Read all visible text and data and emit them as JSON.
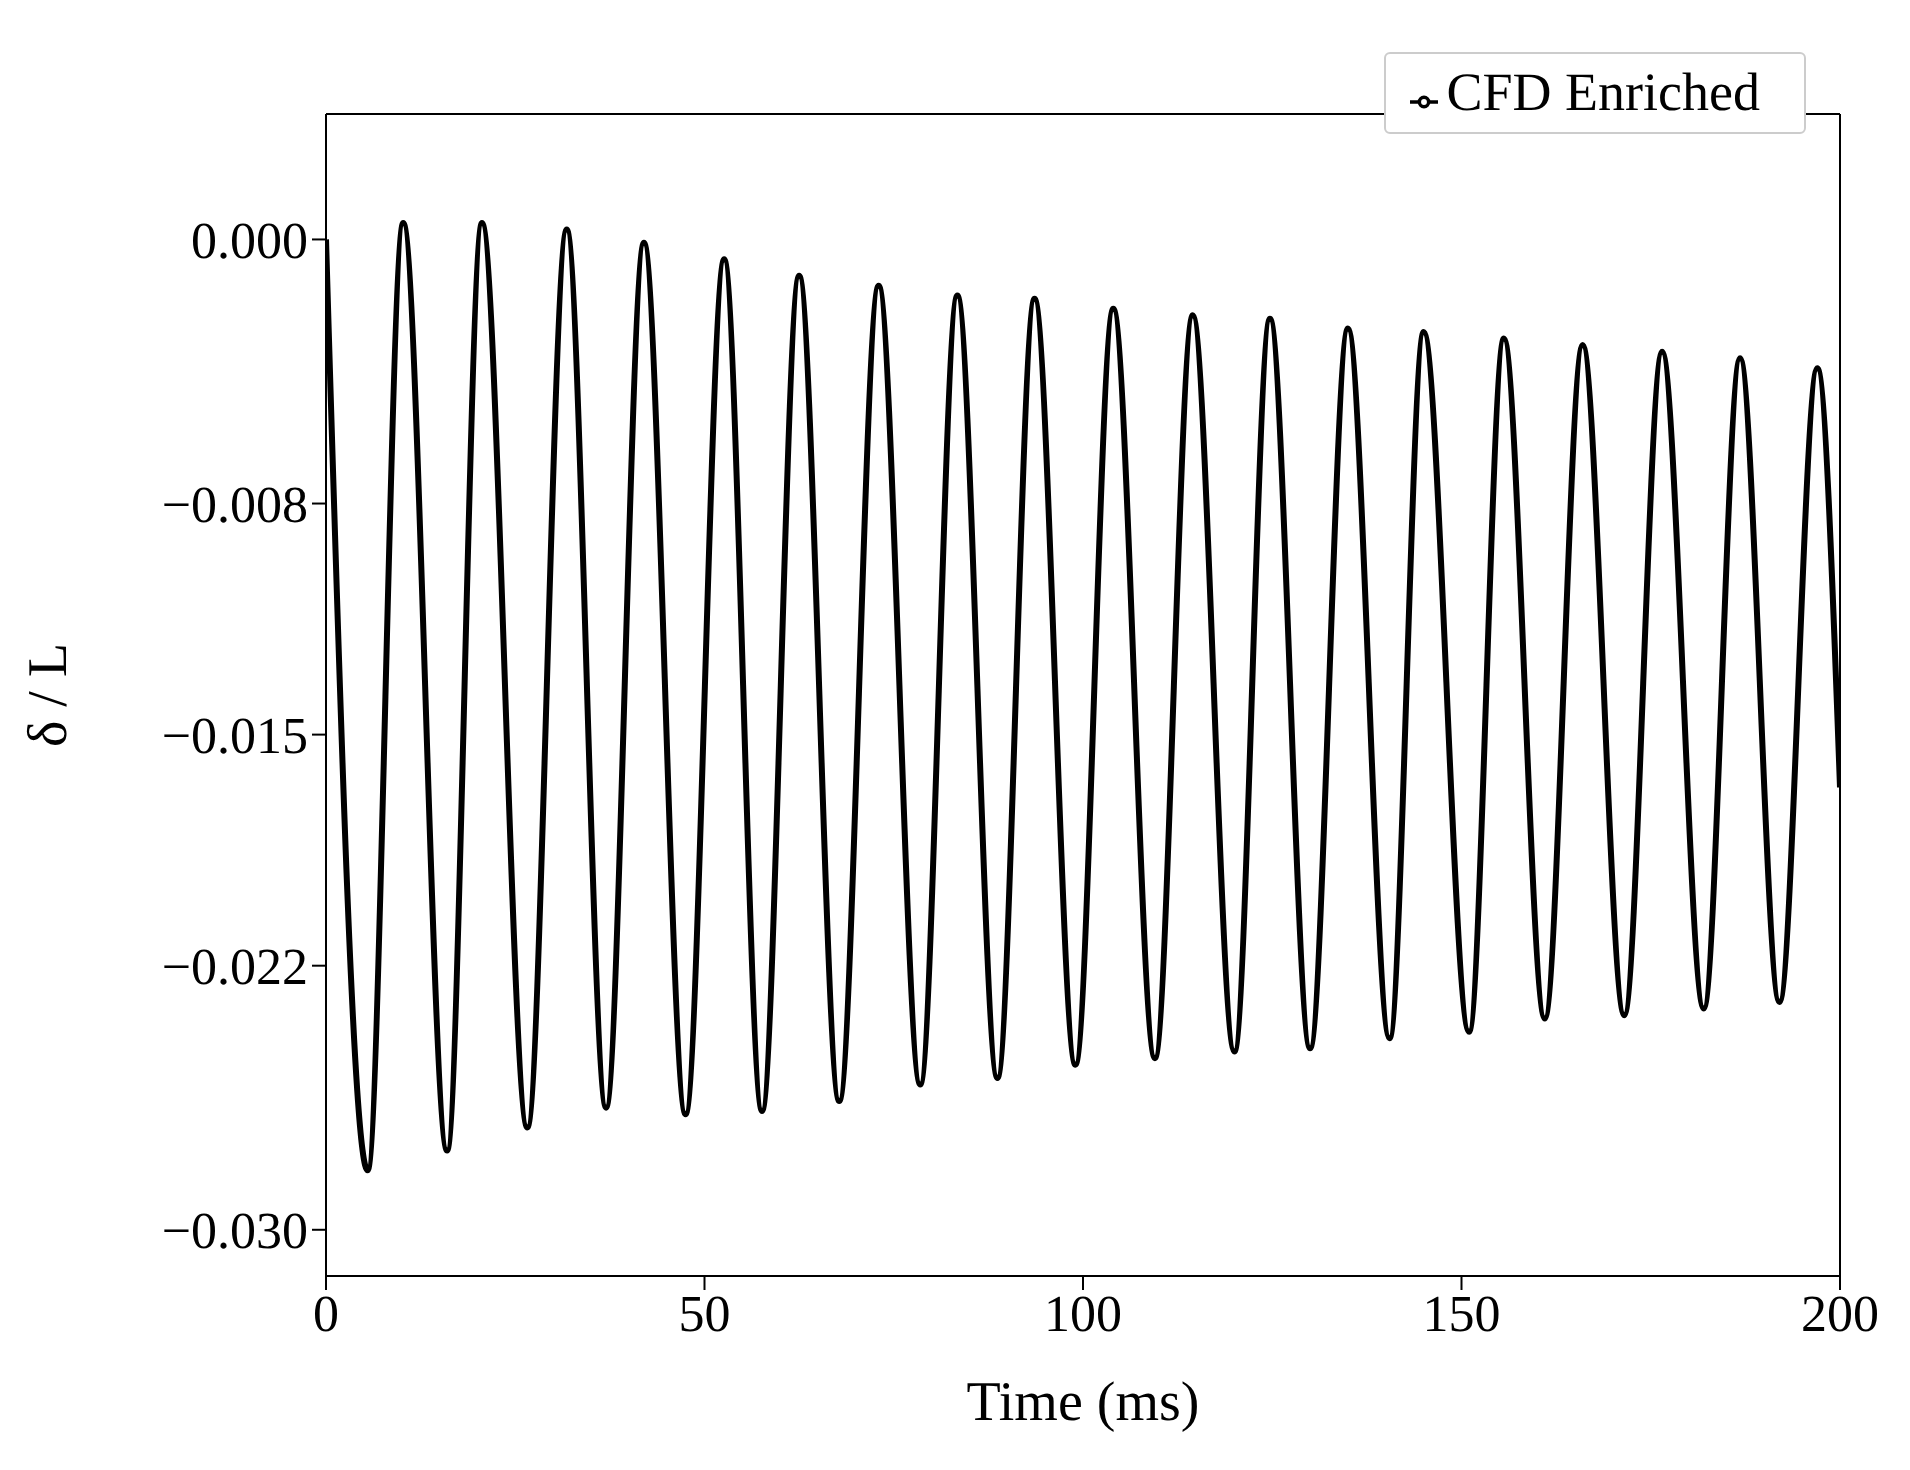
{
  "chart_data": {
    "type": "line",
    "xlabel": "Time (ms)",
    "ylabel": "δ / L",
    "x": [
      0,
      5.5,
      10.2,
      16,
      20.6,
      26.6,
      31.8,
      37,
      42,
      47.5,
      52.6,
      57.6,
      62.5,
      67.8,
      73,
      78.5,
      83.4,
      88.7,
      93.6,
      99,
      104,
      109.5,
      114.5,
      120,
      124.7,
      130,
      135,
      140.5,
      145,
      151,
      155.6,
      161,
      166,
      171.5,
      176.5,
      182,
      186.8,
      192,
      197,
      200
    ],
    "series": [
      {
        "name": "CFD Enriched",
        "color": "#000000",
        "values": [
          0,
          -0.0282,
          0.0005,
          -0.0276,
          0.0005,
          -0.0269,
          0.0003,
          -0.0263,
          -0.0001,
          -0.0265,
          -0.0006,
          -0.0264,
          -0.0011,
          -0.0261,
          -0.0014,
          -0.0256,
          -0.0017,
          -0.0254,
          -0.0018,
          -0.025,
          -0.0021,
          -0.0248,
          -0.0023,
          -0.0246,
          -0.0024,
          -0.0245,
          -0.0027,
          -0.0242,
          -0.0028,
          -0.024,
          -0.003,
          -0.0236,
          -0.0032,
          -0.0235,
          -0.0034,
          -0.0233,
          -0.0036,
          -0.0231,
          -0.0039,
          -0.0166
        ]
      }
    ],
    "xlim": [
      0,
      200
    ],
    "xticks": [
      0,
      50,
      100,
      150,
      200
    ],
    "ylim": [
      -0.0314,
      0.0038
    ],
    "yticks": [
      {
        "value": 0,
        "label": "0.000"
      },
      {
        "value": -0.008,
        "label": "−0.008"
      },
      {
        "value": -0.015,
        "label": "−0.015"
      },
      {
        "value": -0.022,
        "label": "−0.022"
      },
      {
        "value": -0.03,
        "label": "−0.030"
      }
    ],
    "legend": "top right",
    "grid": false,
    "marker": "none",
    "line_style": "solid"
  }
}
